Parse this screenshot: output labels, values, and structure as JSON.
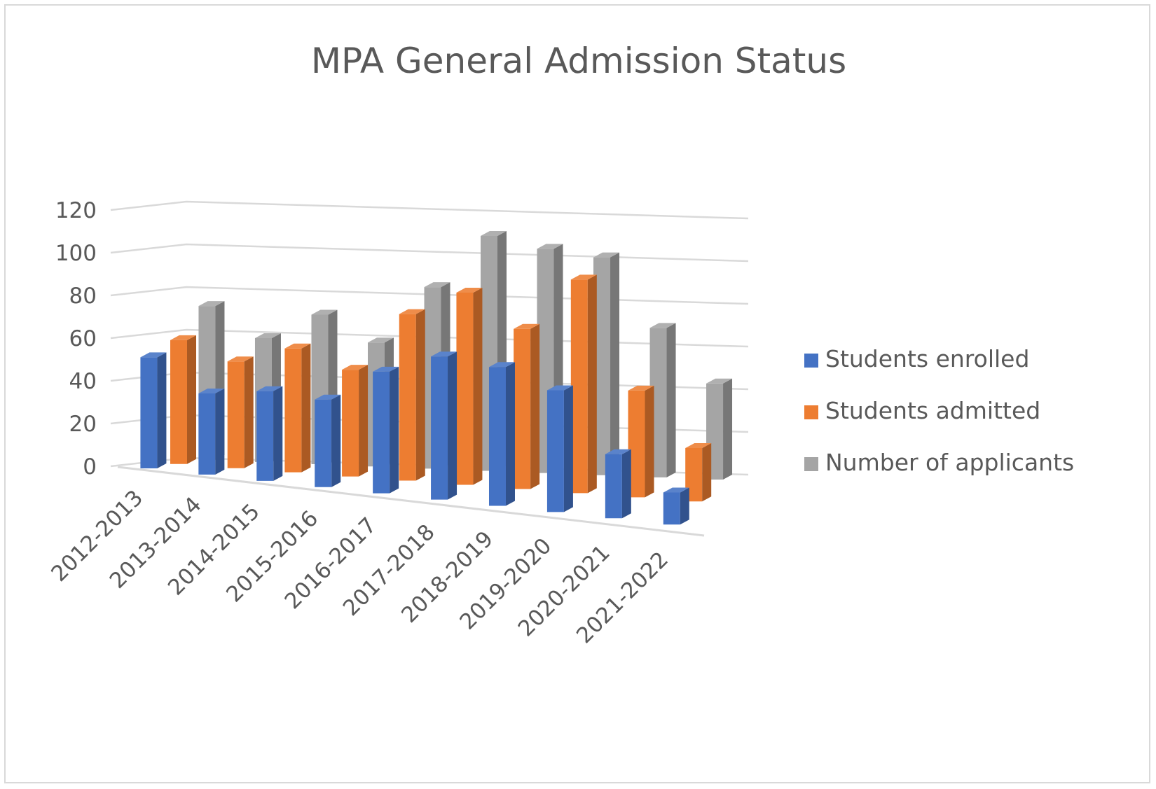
{
  "chart_data": {
    "type": "bar",
    "title": "MPA General Admission Status",
    "categories": [
      "2012-2013",
      "2013-2014",
      "2014-2015",
      "2015-2016",
      "2016-2017",
      "2017-2018",
      "2018-2019",
      "2019-2020",
      "2020-2021",
      "2021-2022"
    ],
    "series": [
      {
        "name": "Students enrolled",
        "color": "#4472c4",
        "values": [
          52,
          38,
          42,
          41,
          57,
          67,
          65,
          57,
          30,
          15
        ]
      },
      {
        "name": "Students admitted",
        "color": "#ed7d31",
        "values": [
          58,
          50,
          58,
          50,
          78,
          90,
          75,
          100,
          50,
          25
        ]
      },
      {
        "name": "Number of applicants",
        "color": "#a5a5a5",
        "values": [
          72,
          58,
          70,
          58,
          85,
          110,
          105,
          102,
          70,
          45
        ]
      }
    ],
    "yticks": [
      "0",
      "20",
      "40",
      "60",
      "80",
      "100",
      "120"
    ],
    "ylim": [
      0,
      120
    ],
    "grid": true,
    "legend_position": "right",
    "style": "3d-clustered-column"
  }
}
